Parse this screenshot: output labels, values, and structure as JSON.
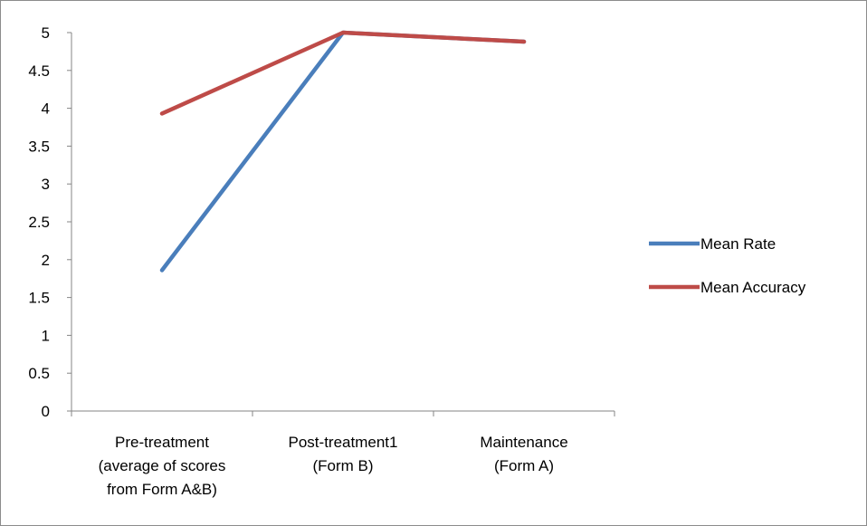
{
  "chart_data": {
    "type": "line",
    "categories": [
      [
        "Pre-treatment",
        "(average of scores",
        "from Form A&B)"
      ],
      [
        "Post-treatment1",
        "(Form B)"
      ],
      [
        "Maintenance",
        "(Form A)"
      ]
    ],
    "ylim": [
      0,
      5
    ],
    "yticks": [
      "0",
      "0.5",
      "1",
      "1.5",
      "2",
      "2.5",
      "3",
      "3.5",
      "4",
      "4.5",
      "5"
    ],
    "series": [
      {
        "name": "Mean Rate",
        "color": "#4a7ebb",
        "values": [
          1.86,
          5.0,
          4.88
        ]
      },
      {
        "name": "Mean Accuracy",
        "color": "#be4b48",
        "values": [
          3.93,
          5.0,
          4.88
        ]
      }
    ],
    "grid": false,
    "legend": "right"
  }
}
